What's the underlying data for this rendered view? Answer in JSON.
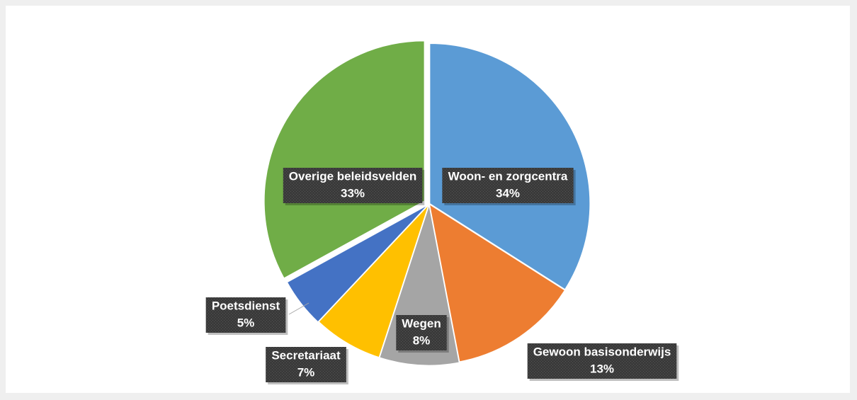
{
  "chart_data": {
    "type": "pie",
    "categories": [
      "Woon- en zorgcentra",
      "Gewoon basisonderwijs",
      "Wegen",
      "Secretariaat",
      "Poetsdienst",
      "Overige beleidsvelden"
    ],
    "values": [
      34,
      13,
      8,
      7,
      5,
      33
    ],
    "value_labels": [
      "34%",
      "13%",
      "8%",
      "7%",
      "5%",
      "33%"
    ],
    "colors": [
      "#5b9bd5",
      "#ed7d31",
      "#a5a5a5",
      "#ffc000",
      "#4472c4",
      "#70ad47"
    ]
  }
}
